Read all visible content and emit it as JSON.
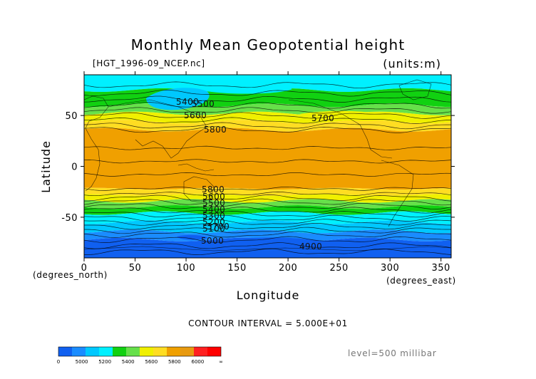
{
  "chart_data": {
    "type": "heatmap",
    "title": "Monthly Mean Geopotential height",
    "source_label": "[HGT_1996-09_NCEP.nc]",
    "units_label": "(units:m)",
    "xlabel": "Longitude",
    "ylabel": "Latitude",
    "x_unit_label": "(degrees_east)",
    "y_unit_label": "(degrees_north)",
    "xlim": [
      0,
      360
    ],
    "ylim": [
      -90,
      90
    ],
    "x_ticks": [
      0,
      50,
      100,
      150,
      200,
      250,
      300,
      350
    ],
    "y_ticks": [
      50,
      0,
      -50
    ],
    "contour_interval_text": "CONTOUR INTERVAL = 5.000E+01",
    "level_text": "level=500 millibar",
    "colorbar": {
      "colors": [
        "#1060f0",
        "#1a8cff",
        "#00c8ff",
        "#00f0ff",
        "#11d111",
        "#66e04a",
        "#f0f000",
        "#ffdd22",
        "#f0a000",
        "#e89a10",
        "#ff2020",
        "#ff0000"
      ],
      "labels": [
        "0",
        "5000",
        "5200",
        "5400",
        "5600",
        "5800",
        "6000",
        "∞"
      ]
    },
    "contour_labels": [
      "5400",
      "5500",
      "5600",
      "5700",
      "5800",
      "5800",
      "5600",
      "5500",
      "5400",
      "5300",
      "5200",
      "5100",
      "5700",
      "5000",
      "4900"
    ],
    "bands": [
      {
        "lat_top": 90,
        "lat_bottom": 75,
        "color": "#00f0ff"
      },
      {
        "lat_top": 75,
        "lat_bottom": 60,
        "color": "#11d111"
      },
      {
        "lat_top": 60,
        "lat_bottom": 52,
        "color": "#66e04a"
      },
      {
        "lat_top": 52,
        "lat_bottom": 44,
        "color": "#f0f000"
      },
      {
        "lat_top": 44,
        "lat_bottom": 36,
        "color": "#ffdd22"
      },
      {
        "lat_top": 36,
        "lat_bottom": -22,
        "color": "#f0a000"
      },
      {
        "lat_top": -22,
        "lat_bottom": -28,
        "color": "#ffdd22"
      },
      {
        "lat_top": -28,
        "lat_bottom": -34,
        "color": "#f0f000"
      },
      {
        "lat_top": -34,
        "lat_bottom": -40,
        "color": "#66e04a"
      },
      {
        "lat_top": -40,
        "lat_bottom": -46,
        "color": "#11d111"
      },
      {
        "lat_top": -46,
        "lat_bottom": -55,
        "color": "#00f0ff"
      },
      {
        "lat_top": -55,
        "lat_bottom": -64,
        "color": "#00c8ff"
      },
      {
        "lat_top": -64,
        "lat_bottom": -72,
        "color": "#1a8cff"
      },
      {
        "lat_top": -72,
        "lat_bottom": -90,
        "color": "#1060f0"
      }
    ],
    "contour_lats": [
      80,
      72,
      66,
      60,
      55,
      50,
      45,
      40,
      36,
      18,
      5,
      -8,
      -22,
      -27,
      -31,
      -35,
      -39,
      -43,
      -47,
      -51,
      -55,
      -59,
      -63,
      -67,
      -72,
      -78,
      -84
    ],
    "grid": false
  }
}
